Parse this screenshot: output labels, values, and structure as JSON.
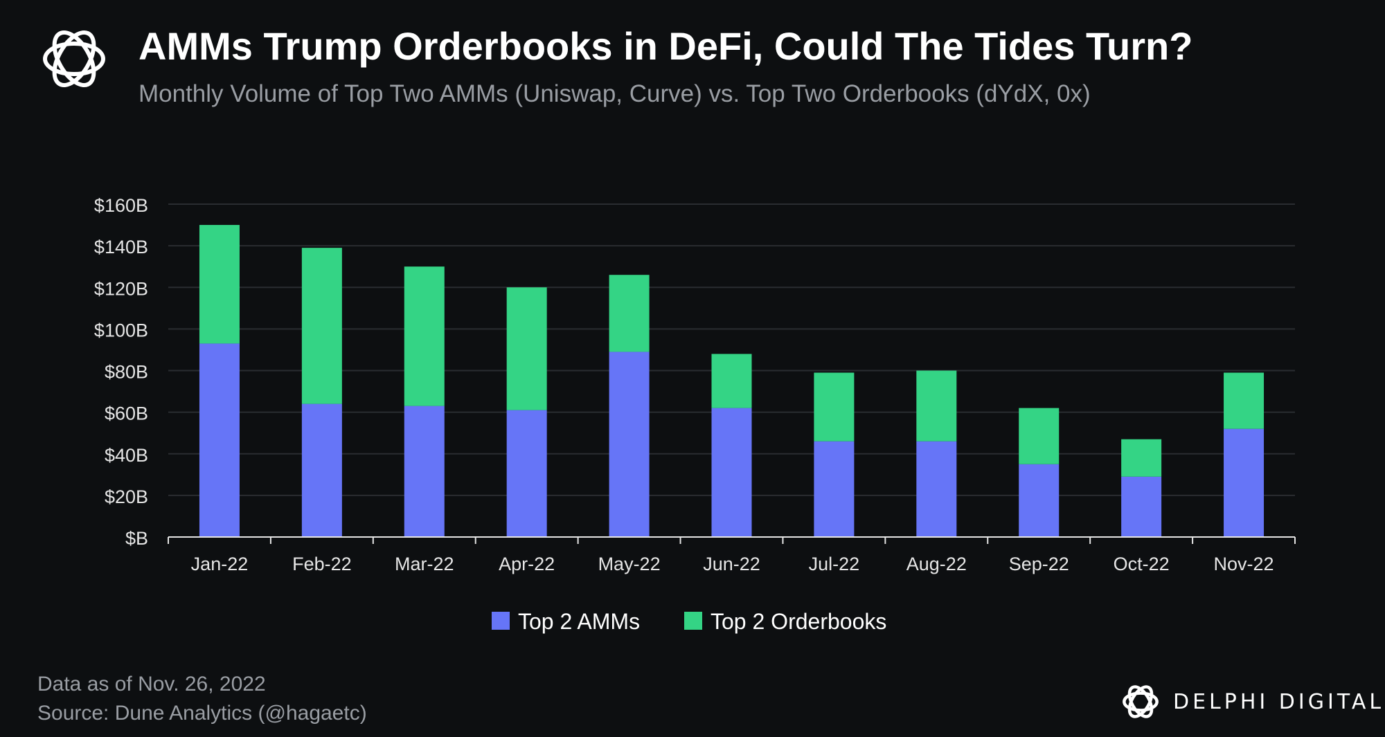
{
  "header": {
    "title": "AMMs Trump Orderbooks in DeFi, Could The Tides Turn?",
    "subtitle": "Monthly Volume of Top Two AMMs (Uniswap, Curve) vs. Top  Two Orderbooks (dYdX, 0x)"
  },
  "footer": {
    "date_note": "Data as of Nov. 26, 2022",
    "source": "Source: Dune Analytics (@hagaetc)",
    "brand": "DELPHI DIGITAL"
  },
  "icons": {
    "logo": "delphi-knot-logo-icon"
  },
  "colors": {
    "background": "#0d0f11",
    "amm": "#6675f7",
    "orderbook": "#34d485",
    "grid": "#2a2d31",
    "axis": "#e6e6e6",
    "tick_text": "#e6e6e6"
  },
  "chart_data": {
    "type": "bar",
    "stacked": true,
    "categories": [
      "Jan-22",
      "Feb-22",
      "Mar-22",
      "Apr-22",
      "May-22",
      "Jun-22",
      "Jul-22",
      "Aug-22",
      "Sep-22",
      "Oct-22",
      "Nov-22"
    ],
    "series": [
      {
        "name": "Top 2 AMMs",
        "values": [
          93,
          64,
          63,
          61,
          89,
          62,
          46,
          46,
          35,
          29,
          52
        ]
      },
      {
        "name": "Top 2 Orderbooks",
        "values": [
          57,
          75,
          67,
          59,
          37,
          26,
          33,
          34,
          27,
          18,
          27
        ]
      }
    ],
    "ylim": [
      0,
      160
    ],
    "yticks": [
      0,
      20,
      40,
      60,
      80,
      100,
      120,
      140,
      160
    ],
    "ytick_labels": [
      "$B",
      "$20B",
      "$40B",
      "$60B",
      "$80B",
      "$100B",
      "$120B",
      "$140B",
      "$160B"
    ],
    "grid": true,
    "legend": "bottom-center",
    "xlabel": "",
    "ylabel": ""
  }
}
